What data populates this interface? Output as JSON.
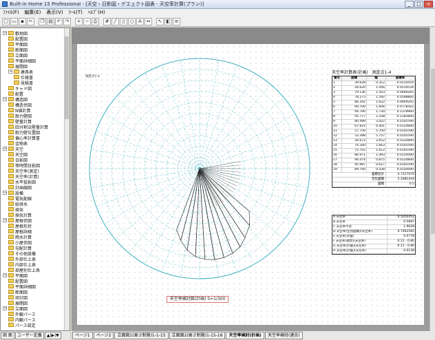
{
  "window": {
    "title": "Built-in Home 15 ProfessionaI - [天空・日影図・ゲエェクト図表 - 天空率計算(プラン)]",
    "buttons": [
      "_",
      "□",
      "×"
    ]
  },
  "menu": [
    "ﾌｧｲﾙ(F)",
    "編集(E)",
    "表示(V)",
    "ﾂｰﾙ(T)",
    "ﾍﾙﾌﾟ(H)"
  ],
  "toolbar": {
    "icons": [
      "new-icon",
      "open-icon",
      "save-icon",
      "cut-icon",
      "copy-icon",
      "paste-icon",
      "undo-icon",
      "redo-icon",
      "zoom-in-icon",
      "zoom-out-icon",
      "print-icon",
      "grid-icon",
      "line-icon",
      "rect-icon",
      "circle-icon",
      "text-icon",
      "dimension-icon",
      "select-icon",
      "color-icon",
      "layer-icon"
    ]
  },
  "tree": {
    "items": [
      {
        "label": "敷地図",
        "level": 0,
        "expanded": true
      },
      {
        "label": "配置図",
        "level": 1
      },
      {
        "label": "平面図",
        "level": 1
      },
      {
        "label": "断面図",
        "level": 1
      },
      {
        "label": "立面図",
        "level": 1
      },
      {
        "label": "平面詳細図",
        "level": 1
      },
      {
        "label": "展開図",
        "level": 1
      },
      {
        "label": "建具表",
        "level": 1,
        "expanded": true
      },
      {
        "label": "仕様書",
        "level": 2
      },
      {
        "label": "見積書",
        "level": 2
      },
      {
        "label": "キャド図",
        "level": 1
      },
      {
        "label": "配置",
        "level": 1
      },
      {
        "label": "構造図",
        "level": 0,
        "expanded": true
      },
      {
        "label": "構造伏図",
        "level": 1
      },
      {
        "label": "N値計算",
        "level": 1
      },
      {
        "label": "耐力壁図",
        "level": 1
      },
      {
        "label": "壁量計算",
        "level": 1
      },
      {
        "label": "四分割法壁量計算",
        "level": 1
      },
      {
        "label": "耐力壁位置図",
        "level": 1
      },
      {
        "label": "偏心率計算書",
        "level": 1
      },
      {
        "label": "金物表",
        "level": 1
      },
      {
        "label": "天空",
        "level": 0,
        "expanded": true
      },
      {
        "label": "天空図",
        "level": 1
      },
      {
        "label": "日影図",
        "level": 1
      },
      {
        "label": "等時間日影図",
        "level": 1
      },
      {
        "label": "天空率(測定)",
        "level": 1
      },
      {
        "label": "天空率(計算)",
        "level": 1
      },
      {
        "label": "水平投影図",
        "level": 1
      },
      {
        "label": "計画線図",
        "level": 1
      },
      {
        "label": "設備",
        "level": 0,
        "expanded": true
      },
      {
        "label": "電気配線",
        "level": 1
      },
      {
        "label": "給排水",
        "level": 1
      },
      {
        "label": "換気",
        "level": 1
      },
      {
        "label": "換気計算",
        "level": 1
      },
      {
        "label": "屋根伏図",
        "level": 0,
        "expanded": true
      },
      {
        "label": "屋根形状",
        "level": 1
      },
      {
        "label": "屋根詳細",
        "level": 1
      },
      {
        "label": "雨水計算",
        "level": 1
      },
      {
        "label": "小屋伏図",
        "level": 1
      },
      {
        "label": "勾配計算",
        "level": 1
      },
      {
        "label": "その他設備",
        "level": 1
      },
      {
        "label": "外部仕上表",
        "level": 1
      },
      {
        "label": "内部仕上表",
        "level": 1
      },
      {
        "label": "部屋別仕上表",
        "level": 1
      },
      {
        "label": "平面図",
        "level": 0,
        "expanded": true
      },
      {
        "label": "配置図",
        "level": 1
      },
      {
        "label": "平面詳細図",
        "level": 1
      },
      {
        "label": "断面図",
        "level": 1
      },
      {
        "label": "矩計図",
        "level": 1
      },
      {
        "label": "展開図",
        "level": 1
      },
      {
        "label": "立面図",
        "level": 0,
        "expanded": true
      },
      {
        "label": "外観パース",
        "level": 1
      },
      {
        "label": "内観パース",
        "level": 1
      },
      {
        "label": "パース設定",
        "level": 1
      }
    ]
  },
  "left_tabs": [
    "図 面",
    "ユーザー定義",
    "▲|▶|▼"
  ],
  "bottom_tabs": [
    {
      "label": "ページ1",
      "active": false
    },
    {
      "label": "ページ2",
      "active": false
    },
    {
      "label": "立面図1(高さ制限)1-1-15",
      "active": false
    },
    {
      "label": "立面図2(高さ制限)1-15-16",
      "active": false
    },
    {
      "label": "天空率検討(計画)",
      "active": true
    },
    {
      "label": "天空率検討(適合)",
      "active": false
    }
  ],
  "drawing": {
    "caption": "天空率検討図(計画) S=1/300",
    "point_label": "測定点1-4",
    "table_title": "天空率計算表(計画)　測定点1-4",
    "table_headers": [
      "番号",
      "面積",
      "幅",
      "面積率"
    ],
    "table_rows": [
      [
        "1",
        "39.628",
        "0.312",
        "0.0110454"
      ],
      [
        "2",
        "44.620",
        "1.456",
        "0.0519534"
      ],
      [
        "3",
        "79.136",
        "1.503",
        "0.0609265"
      ],
      [
        "4",
        "78.273",
        "1.592",
        "0.0598860"
      ],
      [
        "5",
        "86.342",
        "1.622",
        "0.0609265"
      ],
      [
        "6",
        "90.709",
        "1.606",
        "0.0778562"
      ],
      [
        "7",
        "94.790",
        "1.730",
        "0.1378960"
      ],
      [
        "8",
        "95.777",
        "2.108",
        "0.1183840"
      ],
      [
        "9",
        "80.499",
        "3.422",
        "0.0145590"
      ],
      [
        "10",
        "67.814",
        "6.401",
        "0.0124840"
      ],
      [
        "11",
        "57.759",
        "5.700",
        "0.0145590"
      ],
      [
        "12",
        "53.398",
        "5.757",
        "0.0145590"
      ],
      [
        "13",
        "56.672",
        "2.652",
        "0.0124840"
      ],
      [
        "14",
        "74.340",
        "1.663",
        "0.0145590"
      ],
      [
        "15",
        "75.702",
        "1.612",
        "0.0145590"
      ],
      [
        "16",
        "86.971",
        "1.493",
        "0.0150090"
      ],
      [
        "17",
        "94.474",
        "0.875",
        "0.0124840"
      ],
      [
        "18",
        "95.987",
        "0.627",
        "0.0145590"
      ],
      [
        "19",
        "89.766",
        "0.438",
        "0.0150090"
      ]
    ],
    "table_sums": [
      {
        "label": "面積合計",
        "value": "4.7217070"
      },
      {
        "label": "空比面積",
        "value": "2.2681444"
      },
      {
        "label": "面積",
        "value": "0.5"
      }
    ],
    "table2_rows": [
      {
        "k": "A 天空率",
        "v": "0.5050452"
      },
      {
        "k": "B 天空率",
        "v": "0.5687"
      },
      {
        "k": "C 天空率不足",
        "v": "1.9628"
      },
      {
        "k": "D 天空率(空比面積)(天空率)",
        "v": "0.7462585"
      },
      {
        "k": "E 天空率(計画)",
        "v": "0.0778"
      },
      {
        "k": "F 天空率(適合)(天空率)",
        "v": "0.11 - 0.80"
      },
      {
        "k": "G 天空率(計画)(天空率)",
        "v": "0.11 - 0.80"
      },
      {
        "k": "H 天空率(計画)(天空率)",
        "v": "0.0138"
      }
    ]
  }
}
